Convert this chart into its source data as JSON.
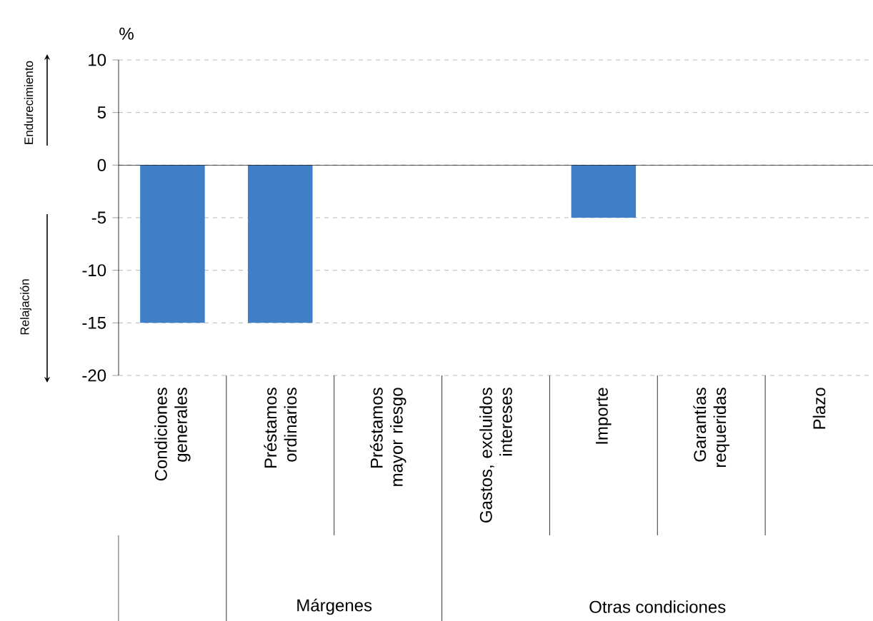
{
  "chart_data": {
    "type": "bar",
    "ylabel": "%",
    "categories": [
      "Condiciones generales",
      "Préstamos ordinarios",
      "Préstamos mayor riesgo",
      "Gastos, excluidos intereses",
      "Importe",
      "Garantías requeridas",
      "Plazo"
    ],
    "values": [
      -15,
      -15,
      0,
      0,
      -5,
      0,
      0
    ],
    "color": "#3f7fc8",
    "ylim": [
      -20,
      10
    ],
    "yticks": [
      -20,
      -15,
      -10,
      -5,
      0,
      5,
      10
    ],
    "grid": "y",
    "annotations": [
      "Endurecimiento",
      "Relajación",
      "Márgenes",
      "Otras condiciones"
    ]
  }
}
